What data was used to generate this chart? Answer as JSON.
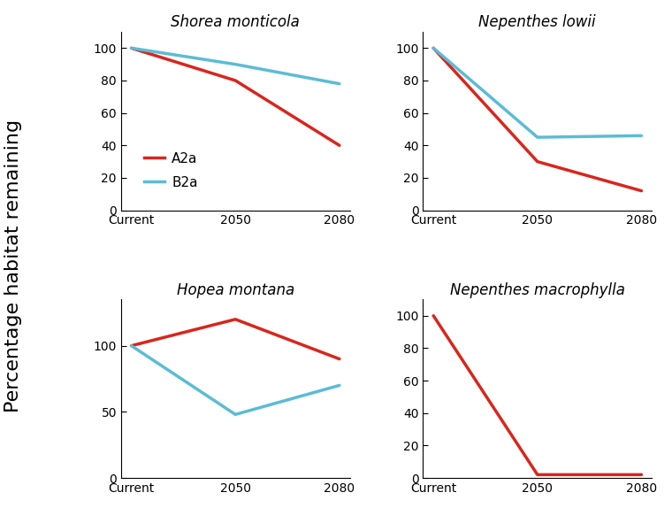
{
  "subplots": [
    {
      "title": "Shorea monticola",
      "A2a": [
        100,
        80,
        40
      ],
      "B2a": [
        100,
        90,
        78
      ],
      "yticks": [
        0,
        20,
        40,
        60,
        80,
        100
      ],
      "ylim": [
        0,
        110
      ],
      "show_legend": true
    },
    {
      "title": "Nepenthes lowii",
      "A2a": [
        100,
        30,
        12
      ],
      "B2a": [
        100,
        45,
        46
      ],
      "yticks": [
        0,
        20,
        40,
        60,
        80,
        100
      ],
      "ylim": [
        0,
        110
      ],
      "show_legend": false
    },
    {
      "title": "Hopea montana",
      "A2a": [
        100,
        120,
        90
      ],
      "B2a": [
        100,
        48,
        70
      ],
      "yticks": [
        0,
        50,
        100
      ],
      "ylim": [
        0,
        135
      ],
      "show_legend": false
    },
    {
      "title": "Nepenthes macrophylla",
      "A2a": [
        100,
        2,
        2
      ],
      "B2a": null,
      "yticks": [
        0,
        20,
        40,
        60,
        80,
        100
      ],
      "ylim": [
        0,
        110
      ],
      "show_legend": false
    }
  ],
  "x_labels": [
    "Current",
    "2050",
    "2080"
  ],
  "x_positions": [
    0,
    1,
    2
  ],
  "color_A2a": "#d9261c",
  "color_B2a": "#5bbcd6",
  "linewidth": 2.5,
  "ylabel": "Percentage habitat remaining",
  "ylabel_fontsize": 16,
  "title_fontsize": 12,
  "tick_fontsize": 10,
  "legend_fontsize": 11
}
